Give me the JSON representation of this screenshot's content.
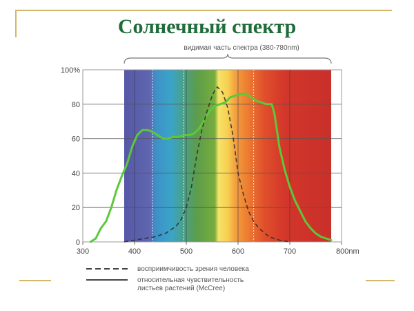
{
  "slide": {
    "title": "Солнечный спектр",
    "frame_color": "#d4b86a",
    "title_color": "#1f6b3a"
  },
  "chart_data": {
    "type": "line",
    "title": "Солнечный спектр",
    "annotation": "видимая часть спектра (380-780nm)",
    "xlabel": "nm",
    "ylabel": "%",
    "xlim": [
      300,
      800
    ],
    "ylim": [
      0,
      100
    ],
    "x_ticks": [
      "300",
      "400",
      "500",
      "600",
      "700",
      "800nm"
    ],
    "y_ticks": [
      "0",
      "20",
      "40",
      "60",
      "80",
      "100%"
    ],
    "grid": true,
    "legend_position": "bottom",
    "background_bands": [
      {
        "from": 380,
        "to": 435,
        "color": "#5a5fa8"
      },
      {
        "from": 435,
        "to": 495,
        "color": "#3d9bc8"
      },
      {
        "from": 495,
        "to": 560,
        "color": "#5a9e4a"
      },
      {
        "from": 560,
        "to": 590,
        "color": "#f2e060"
      },
      {
        "from": 590,
        "to": 630,
        "color": "#f08c30"
      },
      {
        "from": 630,
        "to": 780,
        "color": "#d8352a"
      }
    ],
    "series": [
      {
        "name": "восприимчивость зрения человека",
        "style": "dashed",
        "color": "#2a2a2a",
        "x": [
          380,
          400,
          420,
          440,
          460,
          480,
          490,
          500,
          510,
          520,
          530,
          540,
          550,
          555,
          560,
          570,
          580,
          590,
          600,
          610,
          620,
          630,
          640,
          660,
          680,
          700
        ],
        "values": [
          0,
          1,
          2,
          3,
          5,
          9,
          13,
          20,
          32,
          50,
          65,
          76,
          85,
          88,
          90,
          87,
          78,
          62,
          40,
          28,
          18,
          12,
          8,
          3,
          1,
          0
        ]
      },
      {
        "name": "относительная чувствительность листьев растений (McCree)",
        "style": "solid",
        "color": "#5cc83a",
        "x": [
          315,
          325,
          335,
          345,
          355,
          365,
          375,
          385,
          395,
          405,
          415,
          425,
          435,
          445,
          455,
          465,
          475,
          485,
          495,
          505,
          515,
          525,
          535,
          545,
          555,
          565,
          575,
          585,
          595,
          605,
          615,
          625,
          635,
          645,
          655,
          665,
          670,
          675,
          680,
          690,
          700,
          710,
          720,
          730,
          740,
          750,
          760,
          770,
          780
        ],
        "values": [
          0,
          2,
          8,
          12,
          20,
          30,
          38,
          45,
          55,
          62,
          65,
          65,
          64,
          62,
          60,
          60,
          61,
          61,
          62,
          62,
          63,
          66,
          71,
          76,
          79,
          80,
          81,
          84,
          85,
          86,
          86,
          84,
          82,
          81,
          80,
          80,
          75,
          65,
          55,
          42,
          32,
          24,
          18,
          12,
          8,
          5,
          3,
          2,
          1
        ]
      }
    ]
  },
  "legend": {
    "items": [
      {
        "label": "восприимчивость зрения человека",
        "style": "dashed"
      },
      {
        "label": "относительная чувствительность",
        "label2": "листьев растений (McCree)",
        "style": "solid"
      }
    ]
  }
}
